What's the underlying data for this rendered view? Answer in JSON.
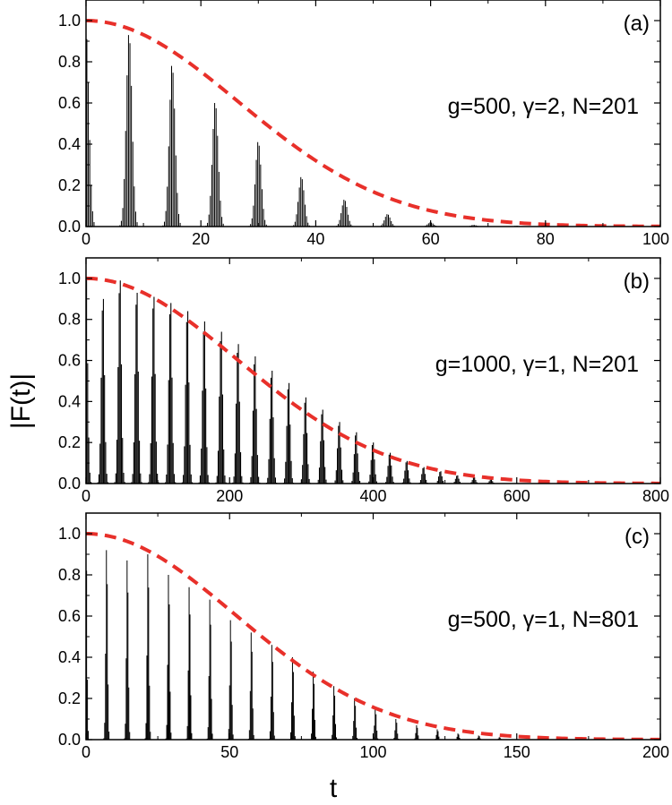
{
  "figure": {
    "ylabel": "|F(t)|",
    "xlabel": "t"
  },
  "colors": {
    "bars": "#000000",
    "envelope": "#e8302a",
    "frame": "#000000"
  },
  "chart_data": [
    {
      "type": "bar",
      "panel_label": "(a)",
      "annotation": "g=500, γ=2, N=201",
      "xlim": [
        0,
        100
      ],
      "ylim": [
        0,
        1.1
      ],
      "xticks": [
        0,
        20,
        40,
        60,
        80,
        100
      ],
      "yticks": [
        0.0,
        0.2,
        0.4,
        0.6,
        0.8,
        1.0
      ],
      "ytick_labels": [
        "0.0",
        "0.2",
        "0.4",
        "0.6",
        "0.8",
        "1.0"
      ],
      "revival_period": 7.5,
      "peak_width": 1.6,
      "line_spacing": 0.25,
      "envelope_sigma": 26.5,
      "peaks": [
        {
          "t": 0,
          "value": 0.95
        },
        {
          "t": 7.5,
          "value": 0.93
        },
        {
          "t": 15,
          "value": 0.78
        },
        {
          "t": 22.5,
          "value": 0.6
        },
        {
          "t": 30,
          "value": 0.41
        },
        {
          "t": 37.5,
          "value": 0.24
        },
        {
          "t": 45,
          "value": 0.13
        },
        {
          "t": 52.5,
          "value": 0.06
        },
        {
          "t": 60,
          "value": 0.02
        },
        {
          "t": 67.5,
          "value": 0.008
        },
        {
          "t": 75,
          "value": 0.004
        }
      ]
    },
    {
      "type": "bar",
      "panel_label": "(b)",
      "annotation": "g=1000, γ=1, N=201",
      "xlim": [
        0,
        800
      ],
      "ylim": [
        0,
        1.1
      ],
      "xticks": [
        0,
        200,
        400,
        600,
        800
      ],
      "yticks": [
        0.0,
        0.2,
        0.4,
        0.6,
        0.8,
        1.0
      ],
      "ytick_labels": [
        "0.0",
        "0.2",
        "0.4",
        "0.6",
        "0.8",
        "1.0"
      ],
      "revival_period": 23.5,
      "peak_width": 7,
      "line_spacing": 1.55,
      "envelope_sigma": 210,
      "peaks": [
        {
          "t": 0,
          "value": 1.0
        },
        {
          "t": 23.5,
          "value": 0.9
        },
        {
          "t": 47,
          "value": 0.99
        },
        {
          "t": 70.5,
          "value": 0.93
        },
        {
          "t": 94,
          "value": 0.91
        },
        {
          "t": 117.5,
          "value": 0.88
        },
        {
          "t": 141,
          "value": 0.84
        },
        {
          "t": 164.5,
          "value": 0.79
        },
        {
          "t": 188,
          "value": 0.74
        },
        {
          "t": 211.5,
          "value": 0.68
        },
        {
          "t": 235,
          "value": 0.62
        },
        {
          "t": 258.5,
          "value": 0.55
        },
        {
          "t": 282,
          "value": 0.49
        },
        {
          "t": 305.5,
          "value": 0.42
        },
        {
          "t": 329,
          "value": 0.36
        },
        {
          "t": 352.5,
          "value": 0.3
        },
        {
          "t": 376,
          "value": 0.25
        },
        {
          "t": 399.5,
          "value": 0.2
        },
        {
          "t": 423,
          "value": 0.15
        },
        {
          "t": 446.5,
          "value": 0.11
        },
        {
          "t": 470,
          "value": 0.08
        },
        {
          "t": 493.5,
          "value": 0.06
        },
        {
          "t": 517,
          "value": 0.04
        },
        {
          "t": 540.5,
          "value": 0.03
        },
        {
          "t": 564,
          "value": 0.02
        }
      ]
    },
    {
      "type": "bar",
      "panel_label": "(c)",
      "annotation": "g=500, γ=1, N=801",
      "xlim": [
        0,
        200
      ],
      "ylim": [
        0,
        1.1
      ],
      "xticks": [
        0,
        50,
        100,
        150,
        200
      ],
      "yticks": [
        0.0,
        0.2,
        0.4,
        0.6,
        0.8,
        1.0
      ],
      "ytick_labels": [
        "0.0",
        "0.2",
        "0.4",
        "0.6",
        "0.8",
        "1.0"
      ],
      "revival_period": 7.2,
      "peak_width": 1.0,
      "line_spacing": 0.3,
      "envelope_sigma": 52,
      "peaks": [
        {
          "t": 0,
          "value": 1.0
        },
        {
          "t": 7.2,
          "value": 0.92
        },
        {
          "t": 14.4,
          "value": 0.87
        },
        {
          "t": 21.6,
          "value": 0.9
        },
        {
          "t": 28.8,
          "value": 0.8
        },
        {
          "t": 36,
          "value": 0.74
        },
        {
          "t": 43.2,
          "value": 0.68
        },
        {
          "t": 50.4,
          "value": 0.58
        },
        {
          "t": 57.6,
          "value": 0.52
        },
        {
          "t": 64.8,
          "value": 0.46
        },
        {
          "t": 72,
          "value": 0.4
        },
        {
          "t": 79.2,
          "value": 0.33
        },
        {
          "t": 86.4,
          "value": 0.26
        },
        {
          "t": 93.6,
          "value": 0.2
        },
        {
          "t": 100.8,
          "value": 0.15
        },
        {
          "t": 108,
          "value": 0.1
        },
        {
          "t": 115.2,
          "value": 0.07
        },
        {
          "t": 122.4,
          "value": 0.05
        },
        {
          "t": 129.6,
          "value": 0.03
        },
        {
          "t": 136.8,
          "value": 0.02
        },
        {
          "t": 144,
          "value": 0.012
        }
      ]
    }
  ]
}
